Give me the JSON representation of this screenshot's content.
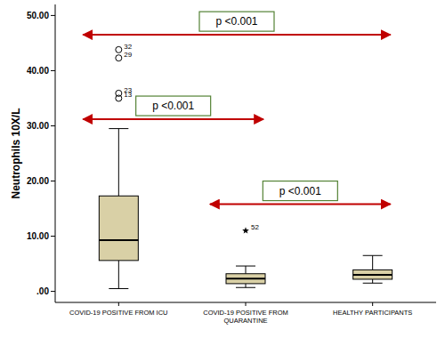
{
  "chart_data": {
    "type": "box",
    "y_label": "Neutrophils 10X/L",
    "categories": [
      "COVID-19 POSITIVE FROM ICU",
      "COVID-19 POSITIVE FROM QUARANTINE",
      "HEALTHY PARTICIPANTS"
    ],
    "color": "#d9d0a6",
    "boxes": [
      {
        "min": 0.5,
        "q1": 5.6,
        "median": 9.3,
        "q3": 17.3,
        "max": 29.5,
        "outliers": [
          {
            "value": 43.8,
            "label": "32",
            "marker": "circle"
          },
          {
            "value": 42.3,
            "label": "29",
            "marker": "circle"
          },
          {
            "value": 35.9,
            "label": "23",
            "marker": "circle"
          },
          {
            "value": 35.0,
            "label": "13",
            "marker": "circle"
          }
        ]
      },
      {
        "min": 0.7,
        "q1": 1.4,
        "median": 2.3,
        "q3": 3.2,
        "max": 4.6,
        "outliers": [
          {
            "value": 11.0,
            "label": "52",
            "marker": "star"
          }
        ]
      },
      {
        "min": 1.5,
        "q1": 2.2,
        "median": 3.0,
        "q3": 3.9,
        "max": 6.5,
        "outliers": []
      }
    ],
    "ylim": [
      -2,
      52
    ],
    "yticks": [
      {
        "value": 0,
        "label": ".00"
      },
      {
        "value": 10,
        "label": "10.00"
      },
      {
        "value": 20,
        "label": "20.00"
      },
      {
        "value": 30,
        "label": "30.00"
      },
      {
        "value": 40,
        "label": "40.00"
      },
      {
        "value": 50,
        "label": "50.00"
      }
    ],
    "grid": false,
    "annotations": [
      {
        "text": "p <0.001",
        "from": "COVID-19 POSITIVE FROM ICU",
        "to": "HEALTHY PARTICIPANTS",
        "y": 46.5
      },
      {
        "text": "p <0.001",
        "from": "COVID-19 POSITIVE FROM ICU",
        "to": "COVID-19 POSITIVE FROM QUARANTINE",
        "y": 31.2
      },
      {
        "text": "p <0.001",
        "from": "COVID-19 POSITIVE FROM QUARANTINE",
        "to": "HEALTHY PARTICIPANTS",
        "y": 15.8
      }
    ]
  }
}
